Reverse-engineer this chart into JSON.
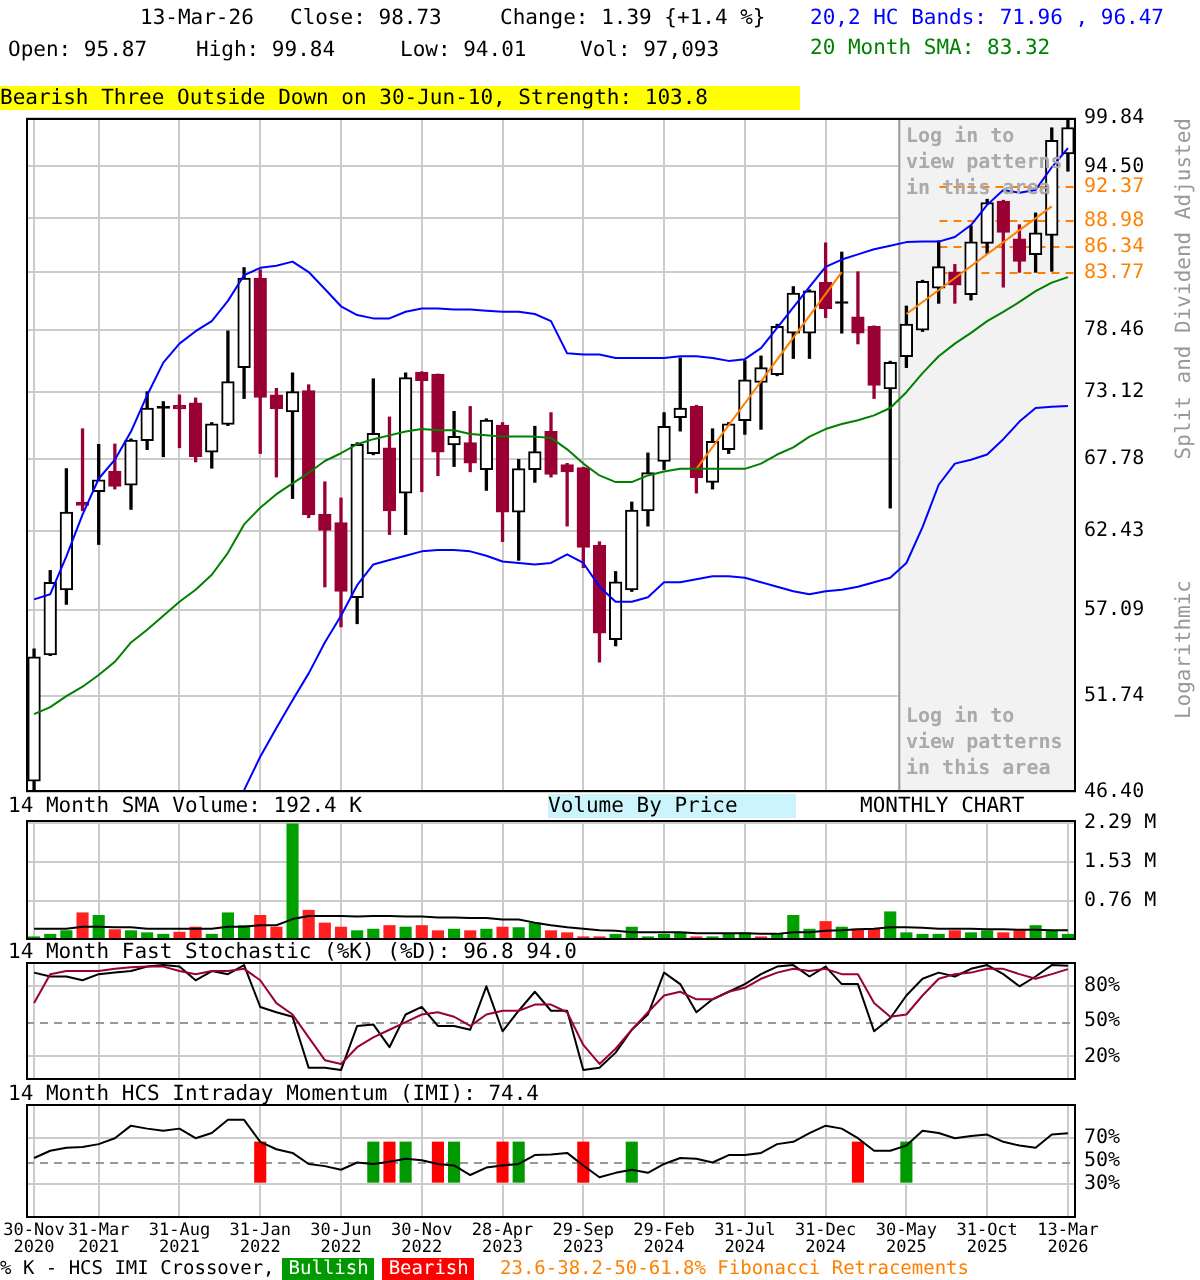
{
  "chart_data": [
    {
      "type": "candlestick",
      "annotations": [
        "13-Mar-26",
        "Close: 98.73",
        "Change: 1.39 {+1.4 %}",
        "Open: 95.87",
        "High: 99.84",
        "Low: 94.01",
        "Vol: 97,093",
        "Bearish Three Outside Down on 30-Jun-10, Strength: 103.8",
        "Log in to view patterns in this area",
        "Log in to view patterns in this area",
        "Logarithmic"
      ],
      "ylabel": "Split and Dividend Adjusted",
      "log": true,
      "grid": true,
      "legend": "top right",
      "tick_labels": "y",
      "categories": [
        "30-Nov 2020",
        null,
        null,
        null,
        "31-Mar 2021",
        null,
        null,
        null,
        null,
        "31-Aug 2021",
        null,
        null,
        null,
        null,
        "31-Jan 2022",
        null,
        null,
        null,
        null,
        "30-Jun 2022",
        null,
        null,
        null,
        null,
        "30-Nov 2022",
        null,
        null,
        null,
        null,
        "28-Apr 2023",
        null,
        null,
        null,
        null,
        "29-Sep 2023",
        null,
        null,
        null,
        null,
        "29-Feb 2024",
        null,
        null,
        null,
        null,
        "31-Jul 2024",
        null,
        null,
        null,
        null,
        "31-Dec 2024",
        null,
        null,
        null,
        null,
        "30-May 2025",
        null,
        null,
        null,
        null,
        "31-Oct 2025",
        null,
        null,
        null,
        null,
        "13-Mar 2026"
      ],
      "ohlc": [
        [
          46.99,
          54.58,
          46.5,
          54.08
        ],
        [
          54.25,
          59.67,
          54.2,
          58.87
        ],
        [
          58.4,
          67.0,
          57.45,
          63.77
        ],
        [
          64.5,
          70.1,
          63.9,
          64.3
        ],
        [
          65.3,
          68.87,
          61.5,
          66.15
        ],
        [
          66.8,
          68.9,
          65.5,
          65.7
        ],
        [
          65.8,
          69.3,
          64.0,
          69.2
        ],
        [
          69.2,
          73.12,
          68.5,
          71.76
        ],
        [
          71.8,
          72.3,
          67.95,
          71.9
        ],
        [
          72.0,
          72.85,
          68.65,
          71.76
        ],
        [
          72.2,
          72.6,
          67.55,
          67.95
        ],
        [
          68.3,
          70.6,
          67.07,
          70.5
        ],
        [
          70.5,
          78.35,
          70.4,
          73.95
        ],
        [
          75.2,
          84.2,
          72.6,
          83.2
        ],
        [
          83.2,
          84.0,
          68.2,
          72.7
        ],
        [
          72.85,
          73.4,
          66.4,
          71.76
        ],
        [
          71.5,
          74.7,
          64.8,
          73.12
        ],
        [
          73.2,
          73.7,
          63.4,
          63.6
        ],
        [
          63.6,
          66.0,
          58.6,
          62.5
        ],
        [
          63.0,
          64.8,
          56.0,
          58.3
        ],
        [
          57.9,
          69.0,
          56.2,
          68.87
        ],
        [
          68.2,
          74.2,
          68.1,
          69.74
        ],
        [
          68.6,
          71.05,
          62.2,
          63.9
        ],
        [
          65.2,
          74.7,
          62.2,
          74.3
        ],
        [
          74.75,
          74.8,
          65.3,
          74.1
        ],
        [
          74.6,
          74.6,
          66.5,
          68.3
        ],
        [
          68.87,
          71.5,
          67.2,
          69.5
        ],
        [
          69.0,
          71.9,
          66.8,
          67.45
        ],
        [
          66.97,
          70.9,
          65.4,
          70.8
        ],
        [
          70.4,
          70.6,
          61.7,
          63.8
        ],
        [
          63.8,
          67.7,
          60.4,
          67.0
        ],
        [
          66.97,
          70.3,
          66.0,
          68.3
        ],
        [
          69.9,
          71.4,
          66.4,
          66.6
        ],
        [
          67.3,
          67.4,
          62.8,
          66.8
        ],
        [
          67.07,
          67.1,
          59.9,
          61.3
        ],
        [
          61.4,
          61.65,
          53.8,
          55.6
        ],
        [
          55.2,
          59.6,
          54.8,
          58.9
        ],
        [
          58.4,
          64.5,
          58.3,
          63.9
        ],
        [
          63.9,
          68.2,
          62.8,
          66.7
        ],
        [
          67.6,
          71.4,
          66.97,
          70.3
        ],
        [
          71.05,
          75.98,
          69.96,
          71.76
        ],
        [
          71.9,
          72.0,
          65.2,
          66.35
        ],
        [
          66.0,
          70.1,
          65.5,
          69.1
        ],
        [
          68.5,
          70.6,
          68.2,
          70.5
        ],
        [
          70.8,
          75.75,
          69.7,
          74.1
        ],
        [
          73.95,
          76.15,
          70.1,
          75.15
        ],
        [
          74.6,
          78.95,
          74.5,
          78.76
        ],
        [
          78.2,
          82.4,
          75.98,
          81.8
        ],
        [
          78.2,
          82.1,
          75.98,
          82.0
        ],
        [
          82.8,
          86.6,
          79.6,
          80.4
        ],
        [
          80.9,
          85.7,
          78.2,
          81.0
        ],
        [
          79.6,
          83.8,
          77.25,
          78.2
        ],
        [
          78.75,
          78.8,
          72.6,
          73.7
        ],
        [
          73.4,
          75.7,
          64.1,
          75.6
        ],
        [
          76.15,
          80.6,
          75.2,
          78.95
        ],
        [
          78.46,
          83.0,
          78.35,
          82.9
        ],
        [
          82.3,
          86.8,
          80.9,
          84.3
        ],
        [
          83.8,
          84.5,
          80.9,
          82.6
        ],
        [
          81.7,
          88.3,
          81.2,
          86.7
        ],
        [
          86.6,
          91.0,
          85.6,
          90.65
        ],
        [
          90.8,
          90.9,
          82.4,
          87.7
        ],
        [
          87.0,
          88.4,
          83.8,
          84.85
        ],
        [
          85.5,
          89.6,
          83.8,
          87.6
        ],
        [
          87.4,
          98.7,
          83.9,
          97.3
        ],
        [
          95.87,
          99.84,
          94.01,
          98.73
        ]
      ],
      "colors": [
        "#000000",
        "#000000",
        "#000000",
        "#990033",
        "#000000",
        "#990033",
        "#000000",
        "#000000",
        "#000000",
        "#990033",
        "#990033",
        "#000000",
        "#000000",
        "#000000",
        "#990033",
        "#990033",
        "#000000",
        "#990033",
        "#990033",
        "#990033",
        "#000000",
        "#000000",
        "#990033",
        "#000000",
        "#990033",
        "#990033",
        "#000000",
        "#990033",
        "#000000",
        "#990033",
        "#000000",
        "#000000",
        "#990033",
        "#990033",
        "#990033",
        "#990033",
        "#000000",
        "#000000",
        "#000000",
        "#000000",
        "#000000",
        "#990033",
        "#000000",
        "#000000",
        "#000000",
        "#000000",
        "#000000",
        "#000000",
        "#000000",
        "#990033",
        "#000000",
        "#990033",
        "#990033",
        "#000000",
        "#000000",
        "#000000",
        "#000000",
        "#990033",
        "#000000",
        "#000000",
        "#990033",
        "#990033",
        "#000000",
        "#000000",
        "#000000"
      ],
      "series": [
        {
          "name": "20,2 HC Bands: 71.96 , 96.47",
          "type": "line",
          "color": "#0000ff",
          "values": [
            57.76,
            58.1,
            60.65,
            63.6,
            66.25,
            67.7,
            69.9,
            72.85,
            75.6,
            77.25,
            78.35,
            79.25,
            81.1,
            83.5,
            84.2,
            84.4,
            84.8,
            83.8,
            82.2,
            80.6,
            79.8,
            79.5,
            79.5,
            80.1,
            80.4,
            80.4,
            80.3,
            80.3,
            80.2,
            80.1,
            80.1,
            79.9,
            79.25,
            76.4,
            76.3,
            76.3,
            76.0,
            76.0,
            76.0,
            76.0,
            76.15,
            76.15,
            76.0,
            75.75,
            75.9,
            76.85,
            78.65,
            80.5,
            82.4,
            84.3,
            85.0,
            85.5,
            86.0,
            86.35,
            86.7,
            86.75,
            86.75,
            87.2,
            88.4,
            90.45,
            92.0,
            91.7,
            92.0,
            94.4,
            96.47
          ]
        },
        {
          "type": "line",
          "color": "#0000ff",
          "values": [
            null,
            null,
            null,
            null,
            null,
            null,
            null,
            null,
            null,
            null,
            null,
            null,
            null,
            46.5,
            48.3,
            49.9,
            51.5,
            53.1,
            55.0,
            56.7,
            58.7,
            60.1,
            60.4,
            60.7,
            61.0,
            61.1,
            61.1,
            61.0,
            60.7,
            60.3,
            60.2,
            60.1,
            60.2,
            60.8,
            60.2,
            58.6,
            57.6,
            57.6,
            57.9,
            58.9,
            58.9,
            59.1,
            59.3,
            59.3,
            59.2,
            58.9,
            58.6,
            58.3,
            58.1,
            58.3,
            58.4,
            58.6,
            58.9,
            59.2,
            60.2,
            62.7,
            65.8,
            67.4,
            67.7,
            68.1,
            69.3,
            70.7,
            71.8,
            71.9,
            71.96
          ]
        },
        {
          "name": "20 Month SMA: 83.32",
          "type": "line",
          "color": "#008000",
          "values": [
            50.7,
            51.1,
            51.74,
            52.3,
            53.0,
            53.8,
            55.0,
            55.8,
            56.7,
            57.6,
            58.4,
            59.4,
            60.9,
            62.9,
            64.1,
            65.1,
            65.9,
            66.7,
            67.6,
            68.2,
            68.9,
            69.3,
            69.6,
            69.9,
            70.1,
            70.0,
            70.0,
            69.7,
            69.6,
            69.5,
            69.5,
            69.5,
            69.4,
            68.5,
            67.4,
            66.5,
            66.0,
            66.0,
            66.5,
            66.8,
            67.0,
            67.0,
            67.0,
            67.0,
            67.0,
            67.4,
            68.1,
            68.65,
            69.5,
            70.1,
            70.5,
            70.8,
            71.2,
            71.8,
            73.1,
            74.7,
            76.15,
            77.25,
            78.2,
            79.25,
            80.1,
            81.0,
            82.0,
            82.8,
            83.32
          ]
        },
        {
          "type": "line",
          "color": "#ff8000",
          "values": [
            null,
            null,
            null,
            null,
            null,
            null,
            null,
            null,
            null,
            null,
            null,
            null,
            null,
            null,
            null,
            null,
            null,
            null,
            null,
            null,
            null,
            null,
            null,
            null,
            null,
            null,
            null,
            null,
            null,
            null,
            null,
            null,
            null,
            null,
            null,
            null,
            null,
            null,
            null,
            null,
            null,
            67.0,
            null,
            null,
            null,
            null,
            null,
            null,
            null,
            null,
            83.8,
            null,
            null,
            null,
            null,
            null,
            null,
            null,
            null,
            null,
            null,
            null,
            null,
            null,
            null
          ]
        },
        {
          "type": "line",
          "color": "#ff8000",
          "values": [
            null,
            null,
            null,
            null,
            null,
            null,
            null,
            null,
            null,
            null,
            null,
            null,
            null,
            null,
            null,
            null,
            null,
            null,
            null,
            null,
            null,
            null,
            null,
            null,
            null,
            null,
            null,
            null,
            null,
            null,
            null,
            null,
            null,
            null,
            null,
            null,
            null,
            null,
            null,
            null,
            null,
            null,
            null,
            null,
            null,
            null,
            null,
            null,
            null,
            null,
            null,
            null,
            null,
            null,
            79.9,
            null,
            null,
            null,
            null,
            null,
            null,
            null,
            null,
            90.3,
            null
          ]
        }
      ],
      "ylim": [
        46.4,
        99.84
      ],
      "yticks": [
        {
          "value": 46.4,
          "label": "46.40"
        },
        51.74,
        57.09,
        62.43,
        67.78,
        73.12,
        78.46,
        {
          "value": 83.81,
          "label": null
        },
        {
          "value": 89.15,
          "label": null
        },
        {
          "value": 94.5,
          "label": "94.50"
        },
        99.84
      ],
      "ref_lines": [
        {
          "axis": "y",
          "value": 92.37,
          "label": "92.37",
          "color": "#ff8000",
          "line_style": "dashed"
        },
        {
          "axis": "y",
          "value": 88.98,
          "label": "88.98",
          "color": "#ff8000",
          "line_style": "dashed"
        },
        {
          "axis": "y",
          "value": 86.34,
          "label": "86.34",
          "color": "#ff8000",
          "line_style": "dashed"
        },
        {
          "axis": "y",
          "value": 83.77,
          "label": "83.77",
          "color": "#ff8000",
          "line_style": "dashed"
        }
      ],
      "bands": [
        {
          "axis": "x",
          "from": "30-May 2025",
          "to": "13-Mar 2026",
          "color": "#f2f2f2"
        }
      ]
    },
    {
      "type": "bar",
      "title": "14 Month SMA Volume: 192.4 K",
      "annotations": [
        "Volume By Price",
        "MONTHLY CHART"
      ],
      "grid": true,
      "tick_labels": "y",
      "categories": [
        "30-Nov 2020",
        null,
        null,
        null,
        "31-Mar 2021",
        null,
        null,
        null,
        null,
        "31-Aug 2021",
        null,
        null,
        null,
        null,
        "31-Jan 2022",
        null,
        null,
        null,
        null,
        "30-Jun 2022",
        null,
        null,
        null,
        null,
        "30-Nov 2022",
        null,
        null,
        null,
        null,
        "28-Apr 2023",
        null,
        null,
        null,
        null,
        "29-Sep 2023",
        null,
        null,
        null,
        null,
        "29-Feb 2024",
        null,
        null,
        null,
        null,
        "31-Jul 2024",
        null,
        null,
        null,
        null,
        "31-Dec 2024",
        null,
        null,
        null,
        null,
        "30-May 2025",
        null,
        null,
        null,
        null,
        "31-Oct 2025",
        null,
        null,
        null,
        null,
        "13-Mar 2026"
      ],
      "series": [
        {
          "type": "bar",
          "colors": [
            "#00a000",
            "#00a000",
            "#00a000",
            "#ff2020",
            "#00a000",
            "#ff2020",
            "#00a000",
            "#00a000",
            "#00a000",
            "#ff2020",
            "#ff2020",
            "#00a000",
            "#00a000",
            "#00a000",
            "#ff2020",
            "#ff2020",
            "#00a000",
            "#ff2020",
            "#ff2020",
            "#ff2020",
            "#00a000",
            "#00a000",
            "#ff2020",
            "#00a000",
            "#ff2020",
            "#ff2020",
            "#00a000",
            "#ff2020",
            "#00a000",
            "#ff2020",
            "#00a000",
            "#00a000",
            "#ff2020",
            "#ff2020",
            "#ff2020",
            "#ff2020",
            "#00a000",
            "#00a000",
            "#00a000",
            "#00a000",
            "#00a000",
            "#ff2020",
            "#00a000",
            "#00a000",
            "#00a000",
            "#ff2020",
            "#00a000",
            "#00a000",
            "#00a000",
            "#ff2020",
            "#00a000",
            "#ff2020",
            "#ff2020",
            "#00a000",
            "#00a000",
            "#00a000",
            "#00a000",
            "#ff2020",
            "#00a000",
            "#00a000",
            "#ff2020",
            "#ff2020",
            "#00a000",
            "#00a000",
            "#00a000"
          ],
          "values": [
            0.07,
            0.12,
            0.19,
            0.54,
            0.49,
            0.21,
            0.19,
            0.15,
            0.12,
            0.16,
            0.26,
            0.12,
            0.54,
            0.29,
            0.49,
            0.26,
            2.28,
            0.59,
            0.34,
            0.26,
            0.19,
            0.22,
            0.29,
            0.26,
            0.29,
            0.19,
            0.22,
            0.19,
            0.22,
            0.26,
            0.25,
            0.34,
            0.19,
            0.15,
            0.07,
            0.07,
            0.12,
            0.26,
            0.07,
            0.12,
            0.16,
            0.07,
            0.07,
            0.12,
            0.15,
            0.07,
            0.12,
            0.49,
            0.22,
            0.37,
            0.26,
            0.22,
            0.22,
            0.56,
            0.15,
            0.12,
            0.12,
            0.19,
            0.15,
            0.19,
            0.15,
            0.19,
            0.29,
            0.19,
            0.12
          ]
        },
        {
          "type": "line",
          "color": "#000000",
          "values": [
            0.22,
            0.22,
            0.22,
            0.26,
            0.26,
            0.25,
            0.25,
            0.22,
            0.22,
            0.22,
            0.22,
            0.22,
            0.26,
            0.26,
            0.29,
            0.29,
            0.41,
            0.47,
            0.47,
            0.47,
            0.46,
            0.47,
            0.47,
            0.46,
            0.46,
            0.44,
            0.44,
            0.43,
            0.43,
            0.4,
            0.4,
            0.34,
            0.29,
            0.25,
            0.22,
            0.19,
            0.18,
            0.15,
            0.15,
            0.15,
            0.15,
            0.13,
            0.13,
            0.13,
            0.13,
            0.12,
            0.12,
            0.15,
            0.15,
            0.18,
            0.19,
            0.21,
            0.22,
            0.25,
            0.25,
            0.24,
            0.22,
            0.22,
            0.22,
            0.21,
            0.21,
            0.2,
            0.2,
            0.19,
            0.19
          ]
        }
      ],
      "ylim": [
        0,
        2.35
      ],
      "yticks": [
        {
          "value": 0.76,
          "label": "0.76 M"
        },
        {
          "value": 1.53,
          "label": "1.53 M"
        },
        {
          "value": 2.29,
          "label": "2.29 M"
        }
      ]
    },
    {
      "type": "line",
      "title": "14 Month Fast Stochastic (%K) (%D): 96.8  94.0",
      "grid": true,
      "tick_labels": "y",
      "categories": [
        "30-Nov 2020",
        null,
        null,
        null,
        "31-Mar 2021",
        null,
        null,
        null,
        null,
        "31-Aug 2021",
        null,
        null,
        null,
        null,
        "31-Jan 2022",
        null,
        null,
        null,
        null,
        "30-Jun 2022",
        null,
        null,
        null,
        null,
        "30-Nov 2022",
        null,
        null,
        null,
        null,
        "28-Apr 2023",
        null,
        null,
        null,
        null,
        "29-Sep 2023",
        null,
        null,
        null,
        null,
        "29-Feb 2024",
        null,
        null,
        null,
        null,
        "31-Jul 2024",
        null,
        null,
        null,
        null,
        "31-Dec 2024",
        null,
        null,
        null,
        null,
        "30-May 2025",
        null,
        null,
        null,
        null,
        "31-Oct 2025",
        null,
        null,
        null,
        null,
        "13-Mar 2026"
      ],
      "series": [
        {
          "color": "#990033",
          "values": [
            65.2,
            89.7,
            92.3,
            92.3,
            92.3,
            94.2,
            95.5,
            96.1,
            96.1,
            92.3,
            89.7,
            92.3,
            92.3,
            94.2,
            84.5,
            65.2,
            55.5,
            36.1,
            16.8,
            13.6,
            27.8,
            36.1,
            42.6,
            49.0,
            55.5,
            57.4,
            53.6,
            45.8,
            55.5,
            58.7,
            58.7,
            63.9,
            63.9,
            57.4,
            29.7,
            13.6,
            26.5,
            42.6,
            57.4,
            71.6,
            74.8,
            68.4,
            68.4,
            74.8,
            78.1,
            85.8,
            91.0,
            94.2,
            92.3,
            94.2,
            89.7,
            89.7,
            65.2,
            53.6,
            55.5,
            71.6,
            85.8,
            89.7,
            91.0,
            94.2,
            94.2,
            89.7,
            85.8,
            89.7,
            94.0
          ]
        },
        {
          "color": "#000000",
          "values": [
            91.0,
            87.7,
            87.7,
            84.5,
            89.7,
            91.0,
            92.3,
            96.1,
            97.4,
            96.1,
            84.5,
            92.3,
            89.7,
            97.4,
            61.9,
            57.4,
            53.6,
            10.3,
            10.3,
            8.4,
            45.8,
            47.1,
            27.8,
            55.5,
            61.9,
            45.8,
            45.8,
            42.6,
            79.4,
            41.3,
            58.7,
            74.8,
            58.7,
            58.7,
            8.4,
            10.3,
            23.2,
            42.6,
            55.5,
            91.0,
            81.3,
            57.4,
            68.4,
            74.8,
            81.3,
            89.7,
            96.1,
            97.4,
            87.7,
            96.1,
            81.3,
            81.3,
            41.3,
            52.3,
            71.6,
            85.8,
            91.0,
            87.7,
            94.2,
            97.4,
            89.7,
            79.4,
            87.7,
            97.4,
            96.8
          ]
        }
      ],
      "ylim": [
        0,
        100
      ],
      "yticks": [
        {
          "value": 20,
          "label": "20%"
        },
        {
          "value": 50,
          "label": "50%"
        },
        {
          "value": 80,
          "label": "80%"
        }
      ],
      "ref_lines": [
        {
          "axis": "y",
          "value": 50,
          "color": "#999999",
          "line_style": "dashed"
        }
      ]
    },
    {
      "type": "line",
      "title": "14 Month HCS Intraday Momentum (IMI): 74.4",
      "grid": true,
      "legend": "bottom",
      "legend_title": "% K - HCS IMI Crossover,",
      "annotations": [
        "23.6-38.2-50-61.8% Fibonacci Retracements"
      ],
      "categories": [
        "30-Nov 2020",
        null,
        null,
        null,
        "31-Mar 2021",
        null,
        null,
        null,
        null,
        "31-Aug 2021",
        null,
        null,
        null,
        null,
        "31-Jan 2022",
        null,
        null,
        null,
        null,
        "30-Jun 2022",
        null,
        null,
        null,
        null,
        "30-Nov 2022",
        null,
        null,
        null,
        null,
        "28-Apr 2023",
        null,
        null,
        null,
        null,
        "29-Sep 2023",
        null,
        null,
        null,
        null,
        "29-Feb 2024",
        null,
        null,
        null,
        null,
        "31-Jul 2024",
        null,
        null,
        null,
        null,
        "31-Dec 2024",
        null,
        null,
        null,
        null,
        "30-May 2025",
        null,
        null,
        null,
        null,
        "31-Oct 2025",
        null,
        null,
        null,
        null,
        "13-Mar 2026"
      ],
      "series": [
        {
          "color": "#000000",
          "values": [
            52.6,
            59.0,
            61.6,
            62.3,
            64.8,
            70.0,
            81.0,
            78.4,
            76.5,
            78.4,
            70.0,
            74.5,
            86.1,
            86.1,
            66.8,
            60.3,
            57.1,
            47.4,
            45.5,
            42.3,
            48.7,
            47.4,
            49.4,
            52.0,
            50.7,
            47.4,
            46.1,
            37.7,
            44.2,
            46.1,
            47.4,
            55.2,
            55.8,
            57.1,
            46.1,
            35.8,
            39.6,
            42.3,
            39.6,
            47.4,
            52.6,
            52.0,
            48.7,
            55.2,
            55.2,
            57.1,
            64.8,
            66.8,
            74.5,
            81.0,
            78.4,
            70.0,
            59.0,
            59.0,
            63.6,
            76.5,
            74.5,
            70.0,
            71.9,
            73.2,
            66.8,
            63.6,
            61.6,
            73.2,
            74.4
          ]
        },
        {
          "name": "Bullish",
          "type": "bar",
          "color": "#009900",
          "base": [
            null,
            null,
            null,
            null,
            null,
            null,
            null,
            null,
            null,
            null,
            null,
            null,
            null,
            null,
            null,
            null,
            null,
            null,
            null,
            null,
            null,
            31,
            null,
            31,
            null,
            null,
            31,
            null,
            null,
            null,
            31,
            null,
            null,
            null,
            null,
            null,
            null,
            31,
            null,
            null,
            null,
            null,
            null,
            null,
            null,
            null,
            null,
            null,
            null,
            null,
            null,
            null,
            null,
            null,
            31,
            null,
            null,
            null,
            null,
            null,
            null,
            null,
            null,
            null,
            null
          ],
          "values": [
            null,
            null,
            null,
            null,
            null,
            null,
            null,
            null,
            null,
            null,
            null,
            null,
            null,
            null,
            null,
            null,
            null,
            null,
            null,
            null,
            null,
            36,
            null,
            36,
            null,
            null,
            36,
            null,
            null,
            null,
            36,
            null,
            null,
            null,
            null,
            null,
            null,
            36,
            null,
            null,
            null,
            null,
            null,
            null,
            null,
            null,
            null,
            null,
            null,
            null,
            null,
            null,
            null,
            null,
            36,
            null,
            null,
            null,
            null,
            null,
            null,
            null,
            null,
            null,
            null
          ]
        },
        {
          "name": "Bearish",
          "type": "bar",
          "color": "#ff0000",
          "base": [
            null,
            null,
            null,
            null,
            null,
            null,
            null,
            null,
            null,
            null,
            null,
            null,
            null,
            null,
            31,
            null,
            null,
            null,
            null,
            null,
            null,
            null,
            31,
            null,
            null,
            31,
            null,
            null,
            null,
            31,
            null,
            null,
            null,
            null,
            31,
            null,
            null,
            null,
            null,
            null,
            null,
            null,
            null,
            null,
            null,
            null,
            null,
            null,
            null,
            null,
            null,
            31,
            null,
            null,
            null,
            null,
            null,
            null,
            null,
            null,
            null,
            null,
            null,
            null,
            null
          ],
          "values": [
            null,
            null,
            null,
            null,
            null,
            null,
            null,
            null,
            null,
            null,
            null,
            null,
            null,
            null,
            36,
            null,
            null,
            null,
            null,
            null,
            null,
            null,
            36,
            null,
            null,
            36,
            null,
            null,
            null,
            36,
            null,
            null,
            null,
            null,
            36,
            null,
            null,
            null,
            null,
            null,
            null,
            null,
            null,
            null,
            null,
            null,
            null,
            null,
            null,
            null,
            null,
            36,
            null,
            null,
            null,
            null,
            null,
            null,
            null,
            null,
            null,
            null,
            null,
            null,
            null
          ]
        }
      ],
      "ylim": [
        0,
        100
      ],
      "yticks": [
        {
          "value": 30,
          "label": "30%"
        },
        {
          "value": 50,
          "label": "50%"
        },
        {
          "value": 70,
          "label": "70%"
        }
      ],
      "ref_lines": [
        {
          "axis": "y",
          "value": 50,
          "color": "#999999",
          "line_style": "dashed"
        }
      ]
    }
  ]
}
